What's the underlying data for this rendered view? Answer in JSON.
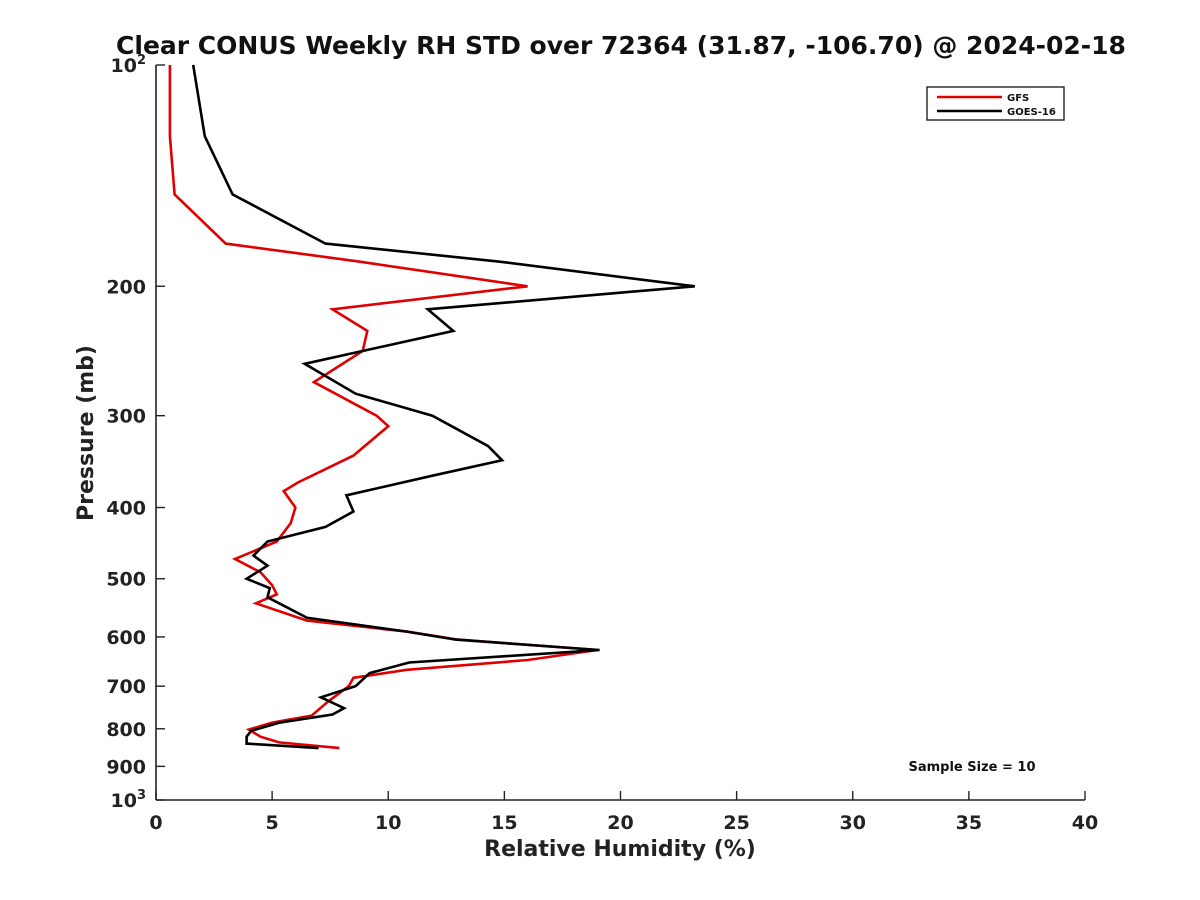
{
  "chart_data": {
    "type": "line",
    "title": "Clear CONUS Weekly RH STD over 72364 (31.87, -106.70) @ 2024-02-18",
    "xlabel": "Relative Humidity (%)",
    "ylabel": "Pressure (mb)",
    "xlim": [
      0,
      40
    ],
    "ylim": [
      100,
      1000
    ],
    "y_scale": "log",
    "y_reversed": true,
    "x_ticks": [
      0,
      5,
      10,
      15,
      20,
      25,
      30,
      35,
      40
    ],
    "x_tick_labels": [
      "0",
      "5",
      "10",
      "15",
      "20",
      "25",
      "30",
      "35",
      "40"
    ],
    "y_ticks": [
      {
        "value": 100,
        "base": "10",
        "exp": "2"
      },
      {
        "value": 200,
        "label": "200"
      },
      {
        "value": 300,
        "label": "300"
      },
      {
        "value": 400,
        "label": "400"
      },
      {
        "value": 500,
        "label": "500"
      },
      {
        "value": 600,
        "label": "600"
      },
      {
        "value": 700,
        "label": "700"
      },
      {
        "value": 800,
        "label": "800"
      },
      {
        "value": 900,
        "label": "900"
      },
      {
        "value": 1000,
        "base": "10",
        "exp": "3"
      }
    ],
    "grid": false,
    "legend_position": "top-right",
    "series": [
      {
        "name": "GFS",
        "color": "#e00000",
        "points": [
          [
            0.6,
            100
          ],
          [
            0.6,
            125
          ],
          [
            0.8,
            150
          ],
          [
            3.0,
            175
          ],
          [
            8.7,
            185
          ],
          [
            16.0,
            200
          ],
          [
            7.6,
            215
          ],
          [
            9.1,
            230
          ],
          [
            8.9,
            245
          ],
          [
            6.8,
            270
          ],
          [
            9.5,
            300
          ],
          [
            10.0,
            310
          ],
          [
            8.5,
            340
          ],
          [
            6.1,
            370
          ],
          [
            5.5,
            380
          ],
          [
            6.0,
            400
          ],
          [
            5.8,
            420
          ],
          [
            5.2,
            445
          ],
          [
            3.4,
            470
          ],
          [
            4.5,
            490
          ],
          [
            5.0,
            510
          ],
          [
            5.2,
            525
          ],
          [
            4.3,
            540
          ],
          [
            6.5,
            570
          ],
          [
            10.8,
            590
          ],
          [
            13.0,
            605
          ],
          [
            19.0,
            625
          ],
          [
            16.0,
            645
          ],
          [
            10.8,
            665
          ],
          [
            8.5,
            682
          ],
          [
            8.3,
            700
          ],
          [
            7.4,
            735
          ],
          [
            6.7,
            768
          ],
          [
            5.0,
            785
          ],
          [
            4.0,
            802
          ],
          [
            4.5,
            820
          ],
          [
            5.3,
            835
          ],
          [
            7.9,
            850
          ]
        ]
      },
      {
        "name": "GOES-16",
        "color": "#000000",
        "points": [
          [
            1.6,
            100
          ],
          [
            2.1,
            125
          ],
          [
            3.3,
            150
          ],
          [
            7.3,
            175
          ],
          [
            14.7,
            185
          ],
          [
            23.2,
            200
          ],
          [
            11.7,
            215
          ],
          [
            12.8,
            230
          ],
          [
            6.4,
            255
          ],
          [
            8.6,
            280
          ],
          [
            11.9,
            300
          ],
          [
            14.3,
            330
          ],
          [
            14.9,
            345
          ],
          [
            11.9,
            362
          ],
          [
            8.2,
            385
          ],
          [
            8.5,
            405
          ],
          [
            7.3,
            425
          ],
          [
            4.8,
            445
          ],
          [
            4.2,
            465
          ],
          [
            4.8,
            480
          ],
          [
            3.9,
            500
          ],
          [
            4.9,
            515
          ],
          [
            4.8,
            530
          ],
          [
            6.5,
            565
          ],
          [
            10.8,
            590
          ],
          [
            12.9,
            605
          ],
          [
            19.1,
            625
          ],
          [
            10.9,
            650
          ],
          [
            9.2,
            672
          ],
          [
            8.6,
            700
          ],
          [
            7.1,
            725
          ],
          [
            8.1,
            750
          ],
          [
            7.6,
            765
          ],
          [
            5.3,
            785
          ],
          [
            4.1,
            805
          ],
          [
            3.9,
            820
          ],
          [
            3.9,
            838
          ],
          [
            7.0,
            850
          ]
        ]
      }
    ],
    "annotations": [
      {
        "text": "Sample Size = 10",
        "position": "bottom-right"
      }
    ]
  }
}
